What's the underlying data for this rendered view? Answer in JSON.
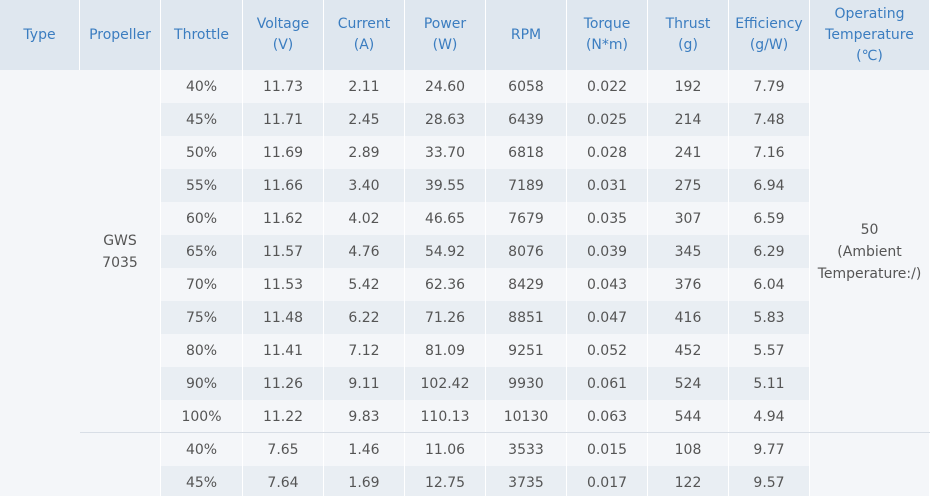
{
  "table": {
    "header": [
      [
        "Type"
      ],
      [
        "Propeller"
      ],
      [
        "Throttle"
      ],
      [
        "Voltage",
        "(V)"
      ],
      [
        "Current",
        "(A)"
      ],
      [
        "Power",
        "(W)"
      ],
      [
        "RPM"
      ],
      [
        "Torque",
        "(N*m)"
      ],
      [
        "Thrust",
        "(g)"
      ],
      [
        "Efficiency",
        "(g/W)"
      ],
      [
        "Operating",
        "Temperature",
        "(℃)"
      ]
    ],
    "groups": [
      {
        "propeller": [
          "GWS",
          "7035"
        ],
        "temperature": [
          "50",
          "(Ambient",
          "Temperature:/)"
        ],
        "rows": [
          [
            "40%",
            "11.73",
            "2.11",
            "24.60",
            "6058",
            "0.022",
            "192",
            "7.79"
          ],
          [
            "45%",
            "11.71",
            "2.45",
            "28.63",
            "6439",
            "0.025",
            "214",
            "7.48"
          ],
          [
            "50%",
            "11.69",
            "2.89",
            "33.70",
            "6818",
            "0.028",
            "241",
            "7.16"
          ],
          [
            "55%",
            "11.66",
            "3.40",
            "39.55",
            "7189",
            "0.031",
            "275",
            "6.94"
          ],
          [
            "60%",
            "11.62",
            "4.02",
            "46.65",
            "7679",
            "0.035",
            "307",
            "6.59"
          ],
          [
            "65%",
            "11.57",
            "4.76",
            "54.92",
            "8076",
            "0.039",
            "345",
            "6.29"
          ],
          [
            "70%",
            "11.53",
            "5.42",
            "62.36",
            "8429",
            "0.043",
            "376",
            "6.04"
          ],
          [
            "75%",
            "11.48",
            "6.22",
            "71.26",
            "8851",
            "0.047",
            "416",
            "5.83"
          ],
          [
            "80%",
            "11.41",
            "7.12",
            "81.09",
            "9251",
            "0.052",
            "452",
            "5.57"
          ],
          [
            "90%",
            "11.26",
            "9.11",
            "102.42",
            "9930",
            "0.061",
            "524",
            "5.11"
          ],
          [
            "100%",
            "11.22",
            "9.83",
            "110.13",
            "10130",
            "0.063",
            "544",
            "4.94"
          ]
        ]
      },
      {
        "rows": [
          [
            "40%",
            "7.65",
            "1.46",
            "11.06",
            "3533",
            "0.015",
            "108",
            "9.77"
          ],
          [
            "45%",
            "7.64",
            "1.69",
            "12.75",
            "3735",
            "0.017",
            "122",
            "9.57"
          ]
        ]
      }
    ]
  }
}
